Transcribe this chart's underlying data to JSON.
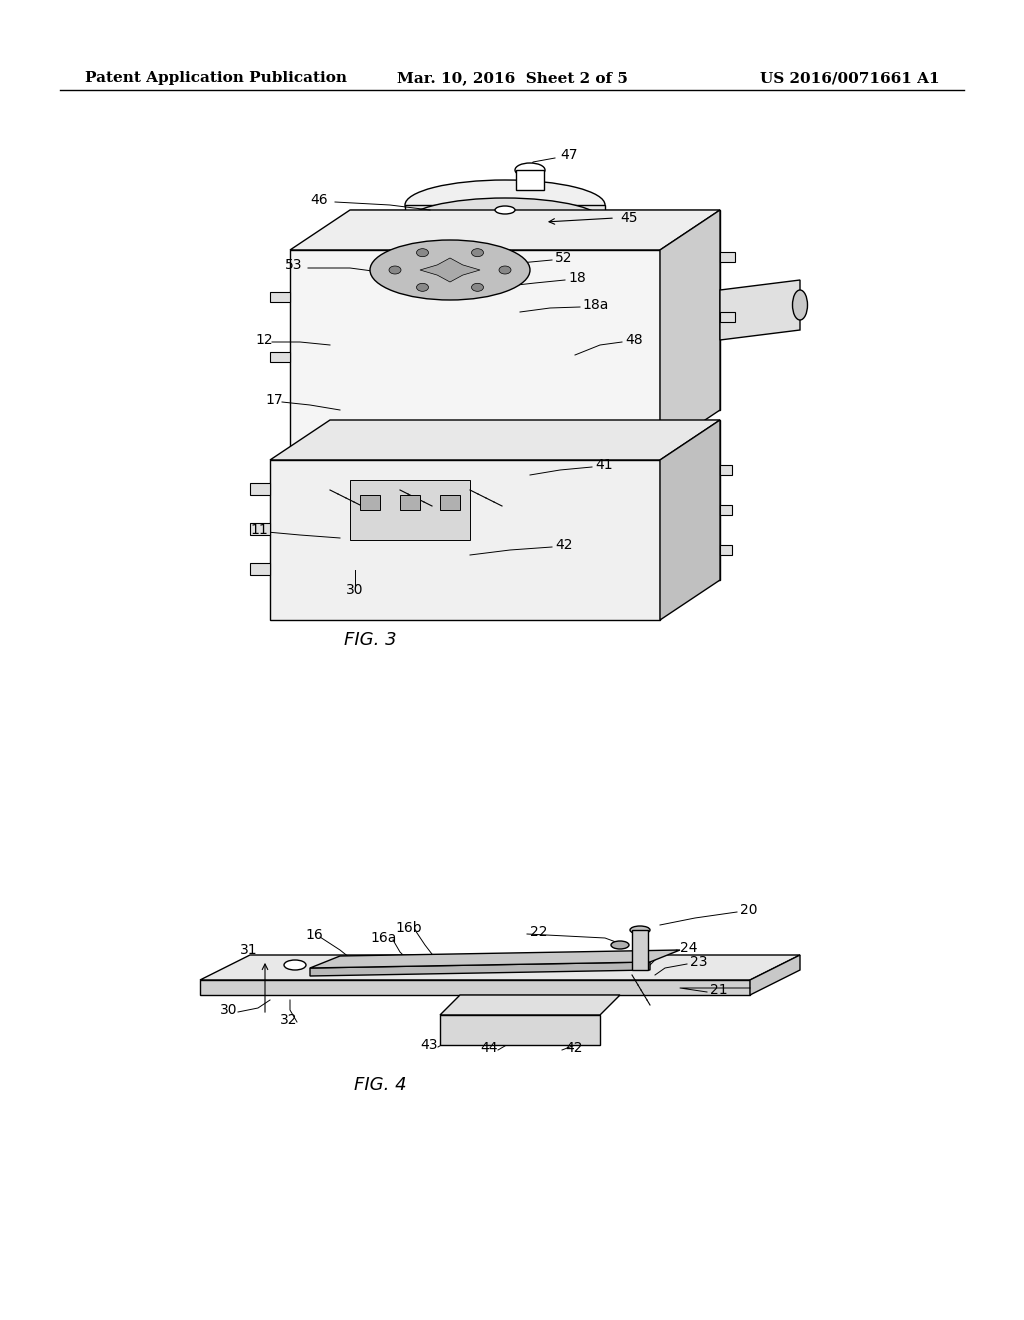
{
  "background_color": "#ffffff",
  "header_left": "Patent Application Publication",
  "header_mid": "Mar. 10, 2016  Sheet 2 of 5",
  "header_right": "US 2016/0071661 A1",
  "fig3_label": "FIG. 3",
  "fig4_label": "FIG. 4",
  "title_fontsize": 11,
  "label_fontsize": 10,
  "fig_label_fontsize": 13
}
